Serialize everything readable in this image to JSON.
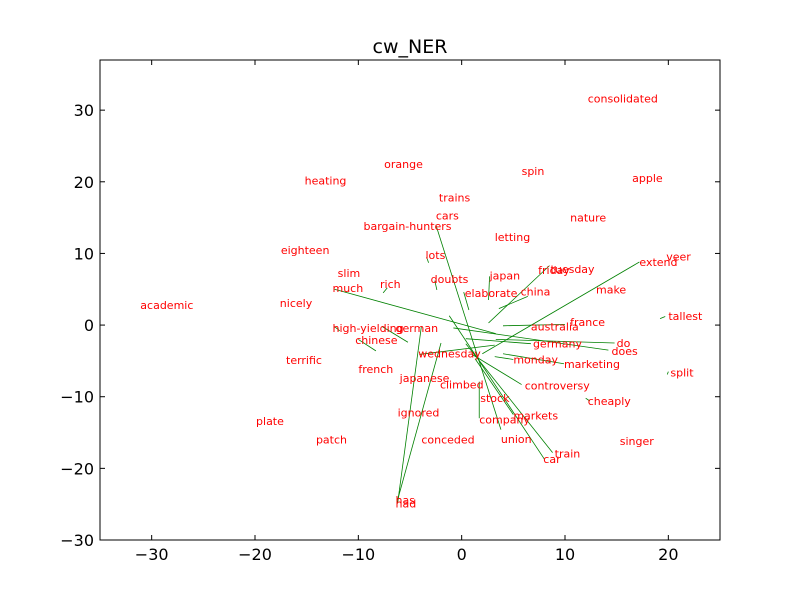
{
  "chart_data": {
    "type": "scatter",
    "title": "cw_NER",
    "xlabel": "",
    "ylabel": "",
    "xlim": [
      -35,
      25
    ],
    "ylim": [
      -30,
      37
    ],
    "x_ticks": [
      -30,
      -20,
      -10,
      0,
      10,
      20
    ],
    "y_ticks": [
      -30,
      -20,
      -10,
      0,
      10,
      20,
      30
    ],
    "x_tick_labels": [
      "−30",
      "−20",
      "−10",
      "0",
      "10",
      "20"
    ],
    "y_tick_labels": [
      "−30",
      "−20",
      "−10",
      "0",
      "10",
      "20",
      "30"
    ],
    "grid": false,
    "colors": {
      "label": "#ff0000",
      "line": "#008000",
      "axes": "#000000"
    },
    "words": [
      {
        "text": "consolidated",
        "x": 12.2,
        "y": 31.6
      },
      {
        "text": "orange",
        "x": -7.5,
        "y": 22.5
      },
      {
        "text": "spin",
        "x": 5.8,
        "y": 21.5
      },
      {
        "text": "heating",
        "x": -15.2,
        "y": 20.2
      },
      {
        "text": "apple",
        "x": 16.5,
        "y": 20.5
      },
      {
        "text": "trains",
        "x": -2.2,
        "y": 17.8
      },
      {
        "text": "cars",
        "x": -2.5,
        "y": 15.3
      },
      {
        "text": "bargain-hunters",
        "x": -9.5,
        "y": 13.8
      },
      {
        "text": "nature",
        "x": 10.5,
        "y": 15.0
      },
      {
        "text": "letting",
        "x": 3.2,
        "y": 12.3
      },
      {
        "text": "eighteen",
        "x": -17.5,
        "y": 10.5
      },
      {
        "text": "lots",
        "x": -3.5,
        "y": 9.8
      },
      {
        "text": "veer",
        "x": 19.8,
        "y": 9.6
      },
      {
        "text": "extend",
        "x": 17.2,
        "y": 8.8
      },
      {
        "text": "friday",
        "x": 7.4,
        "y": 7.7
      },
      {
        "text": "tuesday",
        "x": 8.6,
        "y": 7.8
      },
      {
        "text": "slim",
        "x": -12.0,
        "y": 7.3
      },
      {
        "text": "japan",
        "x": 2.7,
        "y": 6.9
      },
      {
        "text": "doubts",
        "x": -3.0,
        "y": 6.4
      },
      {
        "text": "rich",
        "x": -7.9,
        "y": 5.7
      },
      {
        "text": "much",
        "x": -12.5,
        "y": 5.2
      },
      {
        "text": "china",
        "x": 5.7,
        "y": 4.7
      },
      {
        "text": "elaborate",
        "x": 0.3,
        "y": 4.5
      },
      {
        "text": "make",
        "x": 13.0,
        "y": 5.0
      },
      {
        "text": "academic",
        "x": -31.1,
        "y": 2.8
      },
      {
        "text": "nicely",
        "x": -17.6,
        "y": 3.1
      },
      {
        "text": "tallest",
        "x": 20.0,
        "y": 1.3
      },
      {
        "text": "australia",
        "x": 6.7,
        "y": -0.2
      },
      {
        "text": "france",
        "x": 10.5,
        "y": 0.4
      },
      {
        "text": "high-yielding",
        "x": -12.5,
        "y": -0.4
      },
      {
        "text": "german",
        "x": -6.4,
        "y": -0.4
      },
      {
        "text": "chinese",
        "x": -10.3,
        "y": -2.1
      },
      {
        "text": "do",
        "x": 15.0,
        "y": -2.5
      },
      {
        "text": "germany",
        "x": 6.9,
        "y": -2.6
      },
      {
        "text": "does",
        "x": 14.5,
        "y": -3.6
      },
      {
        "text": "wednesday",
        "x": -4.2,
        "y": -4.0
      },
      {
        "text": "monday",
        "x": 5.0,
        "y": -4.8
      },
      {
        "text": "terrific",
        "x": -17.0,
        "y": -4.9
      },
      {
        "text": "marketing",
        "x": 9.9,
        "y": -5.4
      },
      {
        "text": "french",
        "x": -10.0,
        "y": -6.1
      },
      {
        "text": "split",
        "x": 20.2,
        "y": -6.6
      },
      {
        "text": "japanese",
        "x": -6.0,
        "y": -7.4
      },
      {
        "text": "climbed",
        "x": -2.1,
        "y": -8.3
      },
      {
        "text": "controversy",
        "x": 6.1,
        "y": -8.4
      },
      {
        "text": "stock",
        "x": 1.8,
        "y": -10.2
      },
      {
        "text": "cheaply",
        "x": 12.2,
        "y": -10.6
      },
      {
        "text": "ignored",
        "x": -6.2,
        "y": -12.2
      },
      {
        "text": "markets",
        "x": 5.0,
        "y": -12.6
      },
      {
        "text": "company",
        "x": 1.7,
        "y": -13.2
      },
      {
        "text": "plate",
        "x": -19.9,
        "y": -13.4
      },
      {
        "text": "patch",
        "x": -14.1,
        "y": -16.0
      },
      {
        "text": "conceded",
        "x": -3.9,
        "y": -16.0
      },
      {
        "text": "union",
        "x": 3.8,
        "y": -15.9
      },
      {
        "text": "singer",
        "x": 15.3,
        "y": -16.2
      },
      {
        "text": "train",
        "x": 9.0,
        "y": -17.9
      },
      {
        "text": "car",
        "x": 7.9,
        "y": -18.7
      },
      {
        "text": "has",
        "x": -6.4,
        "y": -24.4
      },
      {
        "text": "had",
        "x": -6.4,
        "y": -24.9
      }
    ],
    "links": [
      {
        "x1": -2.5,
        "y1": 14.0,
        "x2": 3.8,
        "y2": -14.6
      },
      {
        "x1": -2.0,
        "y1": -2.5,
        "x2": -6.2,
        "y2": -24.4
      },
      {
        "x1": -3.9,
        "y1": -0.2,
        "x2": -6.2,
        "y2": -24.9
      },
      {
        "x1": -12.3,
        "y1": 5.0,
        "x2": 3.3,
        "y2": -1.2
      },
      {
        "x1": 17.2,
        "y1": 8.8,
        "x2": 2.0,
        "y2": -4.0
      },
      {
        "x1": 8.5,
        "y1": 8.3,
        "x2": 2.6,
        "y2": 0.3
      },
      {
        "x1": 6.4,
        "y1": 4.0,
        "x2": 3.6,
        "y2": 2.3
      },
      {
        "x1": 14.8,
        "y1": -2.5,
        "x2": 3.3,
        "y2": -2.0
      },
      {
        "x1": 14.2,
        "y1": -3.5,
        "x2": -0.8,
        "y2": -0.4
      },
      {
        "x1": 10.0,
        "y1": 0.1,
        "x2": 4.0,
        "y2": -0.1
      },
      {
        "x1": 6.7,
        "y1": -2.6,
        "x2": 0.4,
        "y2": -1.9
      },
      {
        "x1": -4.1,
        "y1": -4.1,
        "x2": 3.2,
        "y2": -2.8
      },
      {
        "x1": 5.0,
        "y1": -4.8,
        "x2": 3.2,
        "y2": -4.4
      },
      {
        "x1": 9.9,
        "y1": -5.4,
        "x2": 4.0,
        "y2": -4.0
      },
      {
        "x1": 5.8,
        "y1": -8.3,
        "x2": 0.9,
        "y2": -4.0
      },
      {
        "x1": 5.0,
        "y1": -12.5,
        "x2": 1.3,
        "y2": -4.7
      },
      {
        "x1": 8.0,
        "y1": -18.7,
        "x2": -1.2,
        "y2": 1.3
      },
      {
        "x1": 8.8,
        "y1": -17.8,
        "x2": 0.4,
        "y2": -2.6
      },
      {
        "x1": 1.7,
        "y1": -13.0,
        "x2": 1.7,
        "y2": -7.9
      },
      {
        "x1": 0.2,
        "y1": 4.6,
        "x2": 0.7,
        "y2": 2.1
      },
      {
        "x1": -7.7,
        "y1": -0.2,
        "x2": -5.2,
        "y2": -2.4
      },
      {
        "x1": -12.3,
        "y1": -0.2,
        "x2": -11.8,
        "y2": -0.8
      },
      {
        "x1": -10.0,
        "y1": -2.0,
        "x2": -8.3,
        "y2": -3.6
      },
      {
        "x1": -7.2,
        "y1": 5.2,
        "x2": -7.6,
        "y2": 4.5
      },
      {
        "x1": -3.4,
        "y1": 9.5,
        "x2": -3.2,
        "y2": 8.7
      },
      {
        "x1": -2.6,
        "y1": 6.2,
        "x2": -2.4,
        "y2": 4.9
      },
      {
        "x1": 2.7,
        "y1": 6.8,
        "x2": 2.6,
        "y2": 3.5
      },
      {
        "x1": 19.7,
        "y1": 1.2,
        "x2": 19.2,
        "y2": 0.9
      },
      {
        "x1": 20.0,
        "y1": -6.5,
        "x2": 19.9,
        "y2": -6.9
      },
      {
        "x1": 12.0,
        "y1": -10.2,
        "x2": 12.4,
        "y2": -10.6
      }
    ]
  }
}
